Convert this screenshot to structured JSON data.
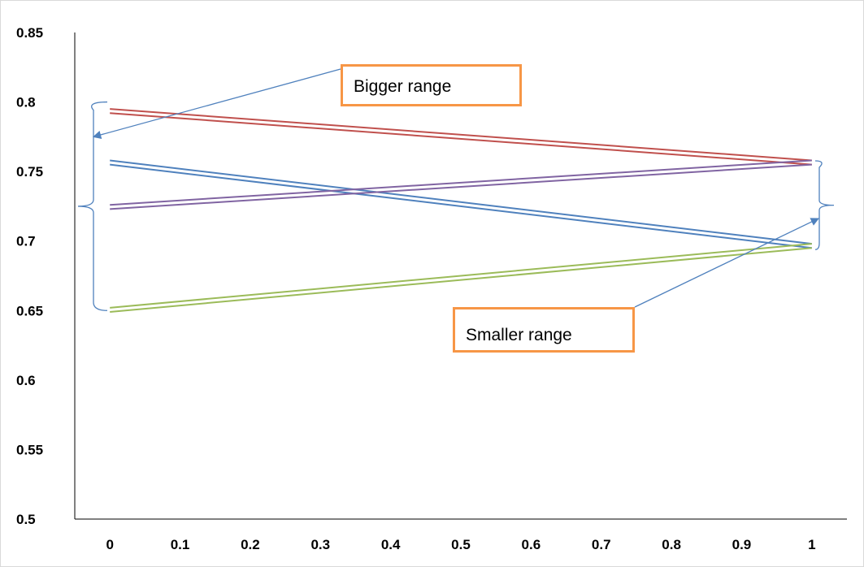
{
  "chart_data": {
    "type": "line",
    "title": "",
    "xlabel": "",
    "ylabel": "",
    "xlim": [
      -0.05,
      1.05
    ],
    "ylim": [
      0.5,
      0.85
    ],
    "x_ticks": [
      "0",
      "0.1",
      "0.2",
      "0.3",
      "0.4",
      "0.5",
      "0.6",
      "0.7",
      "0.8",
      "0.9",
      "1"
    ],
    "y_ticks": [
      "0.85",
      "0.8",
      "0.75",
      "0.7",
      "0.65",
      "0.6",
      "0.55",
      "0.5"
    ],
    "grid": false,
    "legend": "none",
    "series": [
      {
        "color": "#c0504d",
        "x": [
          0,
          1
        ],
        "y": [
          0.795,
          0.758
        ]
      },
      {
        "color": "#c0504d",
        "x": [
          0,
          1
        ],
        "y": [
          0.792,
          0.755
        ]
      },
      {
        "color": "#4f81bd",
        "x": [
          0,
          1
        ],
        "y": [
          0.758,
          0.698
        ]
      },
      {
        "color": "#4f81bd",
        "x": [
          0,
          1
        ],
        "y": [
          0.755,
          0.695
        ]
      },
      {
        "color": "#8064a2",
        "x": [
          0,
          1
        ],
        "y": [
          0.726,
          0.758
        ]
      },
      {
        "color": "#8064a2",
        "x": [
          0,
          1
        ],
        "y": [
          0.723,
          0.755
        ]
      },
      {
        "color": "#9bbb59",
        "x": [
          0,
          1
        ],
        "y": [
          0.652,
          0.698
        ]
      },
      {
        "color": "#9bbb59",
        "x": [
          0,
          1
        ],
        "y": [
          0.649,
          0.695
        ]
      }
    ],
    "annotations": [
      {
        "text": "Bigger range",
        "range": [
          0.65,
          0.8
        ],
        "at_x": 0,
        "arrow_to": [
          0,
          0.775
        ]
      },
      {
        "text": "Smaller range",
        "range": [
          0.695,
          0.76
        ],
        "at_x": 1,
        "arrow_to": [
          1,
          0.715
        ]
      }
    ]
  },
  "colors": {
    "arrow": "#4f81bd",
    "brace": "#4f81bd",
    "annotation_border": "#f79646",
    "axis": "#000000"
  }
}
